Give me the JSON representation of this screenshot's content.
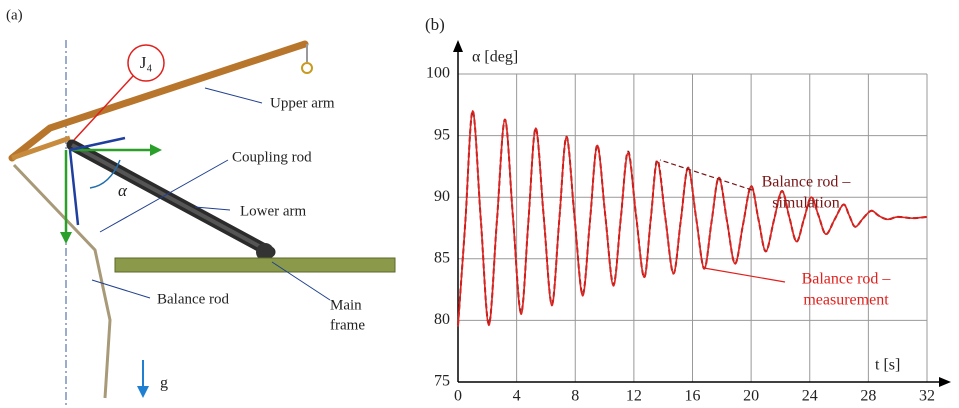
{
  "diagram": {
    "panel_label": "(a)",
    "joint_label": "J₄",
    "angle_label": "α",
    "gravity_label": "g",
    "labels": [
      "Upper arm",
      "Coupling rod",
      "Lower arm",
      "Balance rod"
    ],
    "frame_label": [
      "Main",
      "frame"
    ]
  },
  "chart_data": {
    "type": "line",
    "panel_label": "(b)",
    "ylabel": "α [deg]",
    "xlabel": "t [s]",
    "xlim": [
      0,
      32
    ],
    "xticks": [
      0,
      4,
      8,
      12,
      16,
      20,
      24,
      28,
      32
    ],
    "ylim": [
      75,
      100
    ],
    "yticks": [
      75,
      80,
      85,
      90,
      95,
      100
    ],
    "grid": true,
    "annotations": [
      [
        "Balance rod –",
        "simulation"
      ],
      [
        "Balance rod –",
        "measurement"
      ]
    ],
    "x": [
      0,
      0.5,
      1.0,
      1.55,
      2.1,
      2.65,
      3.2,
      3.75,
      4.3,
      4.8,
      5.3,
      5.85,
      6.4,
      6.9,
      7.4,
      7.95,
      8.5,
      9.0,
      9.5,
      10.05,
      10.6,
      11.1,
      11.6,
      12.15,
      12.7,
      13.15,
      13.6,
      14.15,
      14.7,
      15.2,
      15.7,
      16.25,
      16.8,
      17.3,
      17.8,
      18.35,
      18.9,
      19.45,
      20.0,
      20.5,
      21.0,
      21.55,
      22.1,
      22.6,
      23.1,
      23.6,
      24.1,
      24.6,
      25.1,
      25.7,
      26.3,
      26.7,
      27.1,
      27.65,
      28.2,
      28.7,
      29.3,
      30,
      31,
      32
    ],
    "series": [
      {
        "name": "Balance rod – simulation",
        "color": "#7a1515",
        "dashed": true,
        "values": [
          79.6,
          88,
          97,
          88.3,
          79.7,
          88,
          96.3,
          88.4,
          80.6,
          88,
          95.6,
          88.4,
          81.3,
          88,
          94.9,
          88.4,
          82.1,
          88,
          94.2,
          88.5,
          82.9,
          88.2,
          93.7,
          88.5,
          83.5,
          88.2,
          93.0,
          88.3,
          83.8,
          88.1,
          92.4,
          88.3,
          84.2,
          88,
          91.6,
          88.1,
          84.6,
          87.8,
          90.9,
          88.2,
          85.6,
          88.1,
          90.5,
          88.4,
          86.4,
          88.2,
          90.0,
          88.5,
          87.0,
          88.2,
          89.4,
          88.5,
          87.6,
          88.3,
          88.9,
          88.5,
          88.2,
          88.4,
          88.3,
          88.4
        ]
      },
      {
        "name": "Balance rod – measurement",
        "color": "#e0201c",
        "dashed": false,
        "values": [
          79.5,
          88,
          97,
          88.3,
          79.6,
          88,
          96.3,
          88.4,
          80.5,
          88,
          95.6,
          88.4,
          81.2,
          88,
          94.9,
          88.4,
          82,
          88,
          94.2,
          88.5,
          82.8,
          88.2,
          93.6,
          88.5,
          83.5,
          88.2,
          92.9,
          88.3,
          83.8,
          88.1,
          92.4,
          88.3,
          84.2,
          88,
          91.6,
          88.1,
          84.6,
          87.8,
          90.9,
          88.2,
          85.6,
          88.1,
          90.5,
          88.4,
          86.4,
          88.2,
          90.0,
          88.5,
          87.0,
          88.2,
          89.4,
          88.5,
          87.6,
          88.3,
          88.9,
          88.5,
          88.2,
          88.4,
          88.3,
          88.4
        ]
      }
    ]
  }
}
